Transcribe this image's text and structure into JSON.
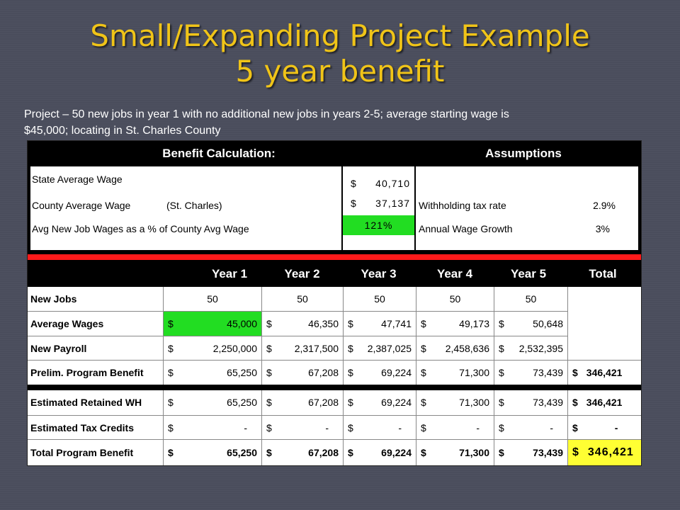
{
  "title_line1": "Small/Expanding Project Example",
  "title_line2": "5 year benefit",
  "subtitle_line1": "Project – 50 new jobs in year 1 with no additional new jobs in years 2-5; average starting wage is",
  "subtitle_line2": "$45,000; locating in St. Charles County",
  "benefit": {
    "header": "Benefit Calculation:",
    "rows": [
      {
        "label": "State Average Wage",
        "extra": "",
        "cur": "$",
        "value": "40,710"
      },
      {
        "label": "County Average Wage",
        "extra": "(St. Charles)",
        "cur": "$",
        "value": "37,137"
      },
      {
        "label": "Avg New Job Wages as a % of County Avg Wage",
        "extra": "",
        "cur": "",
        "value": "121%"
      }
    ]
  },
  "assumptions": {
    "header": "Assumptions",
    "rows": [
      {
        "label": "Withholding tax rate",
        "value": "2.9%"
      },
      {
        "label": "Annual Wage Growth",
        "value": "3%"
      }
    ]
  },
  "years": [
    "Year 1",
    "Year 2",
    "Year 3",
    "Year 4",
    "Year 5",
    "Total"
  ],
  "rows_top": [
    {
      "label": "New Jobs",
      "values": [
        "50",
        "50",
        "50",
        "50",
        "50"
      ],
      "total": ""
    },
    {
      "label": "Average Wages",
      "values": [
        "45,000",
        "46,350",
        "47,741",
        "49,173",
        "50,648"
      ],
      "total": ""
    },
    {
      "label": "New Payroll",
      "values": [
        "2,250,000",
        "2,317,500",
        "2,387,025",
        "2,458,636",
        "2,532,395"
      ],
      "total": ""
    },
    {
      "label": "Prelim. Program Benefit",
      "values": [
        "65,250",
        "67,208",
        "69,224",
        "71,300",
        "73,439"
      ],
      "total": "346,421"
    }
  ],
  "rows_bottom": [
    {
      "label": "Estimated Retained WH",
      "values": [
        "65,250",
        "67,208",
        "69,224",
        "71,300",
        "73,439"
      ],
      "total": "346,421"
    },
    {
      "label": "Estimated Tax Credits",
      "values": [
        "-",
        "-",
        "-",
        "-",
        "-"
      ],
      "total": "-"
    },
    {
      "label": "Total Program Benefit",
      "values": [
        "65,250",
        "67,208",
        "69,224",
        "71,300",
        "73,439"
      ],
      "total": "346,421"
    }
  ],
  "currency": "$",
  "colors": {
    "title": "#f0c418",
    "highlight_green": "#22dd22",
    "highlight_yellow": "#ffff33",
    "divider_red": "#ff1a1a"
  }
}
